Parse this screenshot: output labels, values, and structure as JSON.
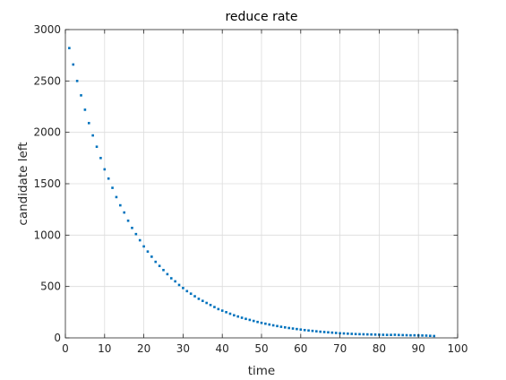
{
  "chart_data": {
    "type": "scatter",
    "title": "reduce rate",
    "xlabel": "time",
    "ylabel": "candidate left",
    "xlim": [
      0,
      100
    ],
    "ylim": [
      0,
      3000
    ],
    "xticks": [
      0,
      10,
      20,
      30,
      40,
      50,
      60,
      70,
      80,
      90,
      100
    ],
    "yticks": [
      0,
      500,
      1000,
      1500,
      2000,
      2500,
      3000
    ],
    "xtick_labels": [
      "0",
      "10",
      "20",
      "30",
      "40",
      "50",
      "60",
      "70",
      "80",
      "90",
      "100"
    ],
    "ytick_labels": [
      "0",
      "500",
      "1000",
      "1500",
      "2000",
      "2500",
      "3000"
    ],
    "grid": true,
    "marker_color": "#0072bd",
    "series": [
      {
        "x": [
          1,
          2,
          3,
          4,
          5,
          6,
          7,
          8,
          9,
          10,
          11,
          12,
          13,
          14,
          15,
          16,
          17,
          18,
          19,
          20,
          21,
          22,
          23,
          24,
          25,
          26,
          27,
          28,
          29,
          30,
          31,
          32,
          33,
          34,
          35,
          36,
          37,
          38,
          39,
          40,
          41,
          42,
          43,
          44,
          45,
          46,
          47,
          48,
          49,
          50,
          51,
          52,
          53,
          54,
          55,
          56,
          57,
          58,
          59,
          60,
          61,
          62,
          63,
          64,
          65,
          66,
          67,
          68,
          69,
          70,
          71,
          72,
          73,
          74,
          75,
          76,
          77,
          78,
          79,
          80,
          81,
          82,
          83,
          84,
          85,
          86,
          87,
          88,
          89,
          90,
          91,
          92,
          93,
          94
        ],
        "y": [
          2820,
          2660,
          2500,
          2360,
          2220,
          2090,
          1970,
          1860,
          1750,
          1640,
          1550,
          1460,
          1370,
          1290,
          1220,
          1140,
          1070,
          1010,
          950,
          890,
          840,
          790,
          740,
          700,
          660,
          620,
          580,
          550,
          515,
          485,
          455,
          430,
          405,
          380,
          360,
          340,
          320,
          300,
          280,
          265,
          250,
          235,
          220,
          208,
          196,
          185,
          175,
          165,
          155,
          146,
          138,
          130,
          122,
          115,
          108,
          102,
          96,
          91,
          86,
          81,
          76,
          72,
          68,
          64,
          60,
          57,
          54,
          51,
          48,
          45,
          43,
          41,
          39,
          37,
          36,
          35,
          34,
          33,
          32,
          31,
          30,
          29,
          29,
          30,
          28,
          27,
          26,
          25,
          25,
          24,
          23,
          22,
          20,
          18
        ]
      }
    ]
  }
}
